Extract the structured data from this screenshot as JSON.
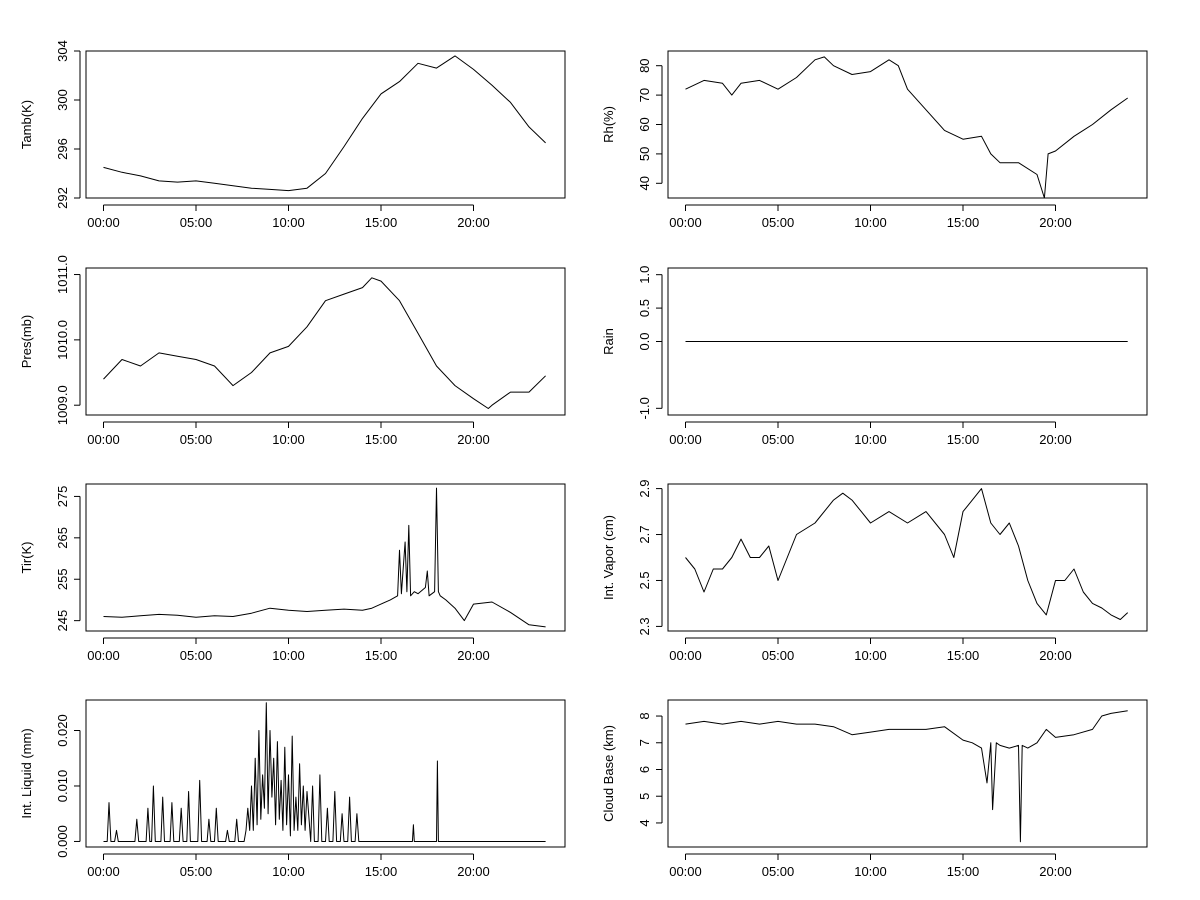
{
  "x_tick_labels": [
    "00:00",
    "05:00",
    "10:00",
    "15:00",
    "20:00"
  ],
  "chart_data": [
    {
      "type": "line",
      "ylabel": "Tamb(K)",
      "x_unit": "hours",
      "xlim": [
        0,
        24
      ],
      "ylim": [
        292,
        304
      ],
      "y_ticks": [
        292,
        296,
        300,
        304
      ],
      "y_tick_labels": [
        "292",
        "296",
        "300",
        "304"
      ],
      "series": [
        {
          "x": [
            0.0,
            1.0,
            2.0,
            3.0,
            4.0,
            5.0,
            6.0,
            7.0,
            8.0,
            9.0,
            10.0,
            11.0,
            12.0,
            13.0,
            14.0,
            15.0,
            16.0,
            17.0,
            18.0,
            19.0,
            20.0,
            21.0,
            22.0,
            23.0,
            23.9
          ],
          "y": [
            294.5,
            294.1,
            293.8,
            293.4,
            293.3,
            293.4,
            293.2,
            293.0,
            292.8,
            292.7,
            292.6,
            292.8,
            294.0,
            296.2,
            298.5,
            300.5,
            301.5,
            303.0,
            302.6,
            303.6,
            302.5,
            301.2,
            299.8,
            297.8,
            296.5
          ]
        }
      ]
    },
    {
      "type": "line",
      "ylabel": "Rh(%)",
      "x_unit": "hours",
      "xlim": [
        0,
        24
      ],
      "ylim": [
        35,
        85
      ],
      "y_ticks": [
        40,
        50,
        60,
        70,
        80
      ],
      "y_tick_labels": [
        "40",
        "50",
        "60",
        "70",
        "80"
      ],
      "series": [
        {
          "x": [
            0.0,
            1.0,
            2.0,
            2.5,
            3.0,
            4.0,
            5.0,
            6.0,
            7.0,
            7.5,
            8.0,
            9.0,
            10.0,
            11.0,
            11.5,
            12.0,
            13.0,
            14.0,
            15.0,
            16.0,
            16.5,
            17.0,
            18.0,
            19.0,
            19.4,
            19.6,
            20.0,
            21.0,
            22.0,
            23.0,
            23.9
          ],
          "y": [
            72,
            75,
            74,
            70,
            74,
            75,
            72,
            76,
            82,
            83,
            80,
            77,
            78,
            82,
            80,
            72,
            65,
            58,
            55,
            56,
            50,
            47,
            47,
            43,
            35,
            50,
            51,
            56,
            60,
            65,
            69
          ]
        }
      ]
    },
    {
      "type": "line",
      "ylabel": "Pres(mb)",
      "x_unit": "hours",
      "xlim": [
        0,
        24
      ],
      "ylim": [
        1008.85,
        1011.1
      ],
      "y_ticks": [
        1009.0,
        1010.0,
        1011.0
      ],
      "y_tick_labels": [
        "1009.0",
        "1010.0",
        "1011.0"
      ],
      "series": [
        {
          "x": [
            0.0,
            1.0,
            2.0,
            3.0,
            4.0,
            5.0,
            6.0,
            7.0,
            8.0,
            9.0,
            10.0,
            11.0,
            12.0,
            13.0,
            14.0,
            14.5,
            15.0,
            16.0,
            17.0,
            18.0,
            19.0,
            20.0,
            20.8,
            21.0,
            22.0,
            23.0,
            23.9
          ],
          "y": [
            1009.4,
            1009.7,
            1009.6,
            1009.8,
            1009.75,
            1009.7,
            1009.6,
            1009.3,
            1009.5,
            1009.8,
            1009.9,
            1010.2,
            1010.6,
            1010.7,
            1010.8,
            1010.95,
            1010.9,
            1010.6,
            1010.1,
            1009.6,
            1009.3,
            1009.1,
            1008.95,
            1009.0,
            1009.2,
            1009.2,
            1009.45
          ]
        }
      ]
    },
    {
      "type": "line",
      "ylabel": "Rain",
      "x_unit": "hours",
      "xlim": [
        0,
        24
      ],
      "ylim": [
        -1.1,
        1.1
      ],
      "y_ticks": [
        -1.0,
        0.0,
        0.5,
        1.0
      ],
      "y_tick_labels": [
        "-1.0",
        "0.0",
        "0.5",
        "1.0"
      ],
      "series": [
        {
          "x": [
            0.0,
            23.9
          ],
          "y": [
            0,
            0
          ]
        }
      ]
    },
    {
      "type": "line",
      "ylabel": "Tir(K)",
      "x_unit": "hours",
      "xlim": [
        0,
        24
      ],
      "ylim": [
        242.5,
        278
      ],
      "y_ticks": [
        245,
        255,
        265,
        275
      ],
      "y_tick_labels": [
        "245",
        "255",
        "265",
        "275"
      ],
      "series": [
        {
          "x": [
            0.0,
            1.0,
            2.0,
            3.0,
            4.0,
            5.0,
            6.0,
            7.0,
            8.0,
            9.0,
            10.0,
            11.0,
            12.0,
            13.0,
            14.0,
            14.5,
            15.0,
            15.5,
            15.9,
            16.0,
            16.1,
            16.3,
            16.4,
            16.5,
            16.6,
            16.8,
            17.0,
            17.4,
            17.5,
            17.6,
            17.9,
            18.0,
            18.1,
            18.2,
            18.5,
            19.0,
            19.5,
            20.0,
            21.0,
            22.0,
            23.0,
            23.9
          ],
          "y": [
            246,
            245.8,
            246.2,
            246.5,
            246.3,
            245.8,
            246.2,
            246.0,
            246.8,
            248.0,
            247.5,
            247.2,
            247.5,
            247.8,
            247.5,
            248.0,
            249.0,
            250.0,
            251.0,
            262.0,
            251.5,
            264.0,
            252.0,
            268.0,
            251.0,
            252.0,
            251.5,
            253.0,
            257.0,
            251.0,
            252.0,
            277.0,
            252.0,
            251.0,
            250.0,
            248.0,
            245.0,
            249.0,
            249.5,
            247.0,
            244.0,
            243.5
          ]
        }
      ]
    },
    {
      "type": "line",
      "ylabel": "Int. Vapor (cm)",
      "x_unit": "hours",
      "xlim": [
        0,
        24
      ],
      "ylim": [
        2.28,
        2.92
      ],
      "y_ticks": [
        2.3,
        2.5,
        2.7,
        2.9
      ],
      "y_tick_labels": [
        "2.3",
        "2.5",
        "2.7",
        "2.9"
      ],
      "series": [
        {
          "x": [
            0.0,
            0.5,
            1.0,
            1.5,
            2.0,
            2.5,
            3.0,
            3.5,
            4.0,
            4.5,
            5.0,
            6.0,
            7.0,
            8.0,
            8.5,
            9.0,
            9.5,
            10.0,
            11.0,
            12.0,
            13.0,
            14.0,
            14.5,
            15.0,
            15.5,
            16.0,
            16.5,
            17.0,
            17.5,
            18.0,
            18.5,
            19.0,
            19.5,
            20.0,
            20.5,
            21.0,
            21.5,
            22.0,
            22.5,
            23.0,
            23.5,
            23.9
          ],
          "y": [
            2.6,
            2.55,
            2.45,
            2.55,
            2.55,
            2.6,
            2.68,
            2.6,
            2.6,
            2.65,
            2.5,
            2.7,
            2.75,
            2.85,
            2.88,
            2.85,
            2.8,
            2.75,
            2.8,
            2.75,
            2.8,
            2.7,
            2.6,
            2.8,
            2.85,
            2.9,
            2.75,
            2.7,
            2.75,
            2.65,
            2.5,
            2.4,
            2.35,
            2.5,
            2.5,
            2.55,
            2.45,
            2.4,
            2.38,
            2.35,
            2.33,
            2.36
          ]
        }
      ]
    },
    {
      "type": "line",
      "ylabel": "Int. Liquid (mm)",
      "x_unit": "hours",
      "xlim": [
        0,
        24
      ],
      "ylim": [
        -0.001,
        0.0255
      ],
      "y_ticks": [
        0.0,
        0.01,
        0.02
      ],
      "y_tick_labels": [
        "0.000",
        "0.010",
        "0.020"
      ],
      "series": [
        {
          "x": [
            0.0,
            0.2,
            0.3,
            0.4,
            0.6,
            0.7,
            0.8,
            1.7,
            1.8,
            1.9,
            2.3,
            2.4,
            2.5,
            2.6,
            2.7,
            2.8,
            3.1,
            3.2,
            3.3,
            3.6,
            3.7,
            3.8,
            4.1,
            4.2,
            4.3,
            4.5,
            4.6,
            4.7,
            5.1,
            5.2,
            5.3,
            5.6,
            5.7,
            5.8,
            6.0,
            6.1,
            6.2,
            6.6,
            6.7,
            6.8,
            7.1,
            7.2,
            7.3,
            7.6,
            7.7,
            7.8,
            7.9,
            8.0,
            8.1,
            8.2,
            8.3,
            8.4,
            8.5,
            8.6,
            8.7,
            8.8,
            8.9,
            9.0,
            9.1,
            9.2,
            9.3,
            9.4,
            9.5,
            9.6,
            9.7,
            9.8,
            9.9,
            10.0,
            10.1,
            10.2,
            10.3,
            10.4,
            10.5,
            10.6,
            10.7,
            10.8,
            10.9,
            11.0,
            11.2,
            11.3,
            11.4,
            11.6,
            11.7,
            11.8,
            12.0,
            12.1,
            12.2,
            12.4,
            12.5,
            12.6,
            12.8,
            12.9,
            13.0,
            13.2,
            13.3,
            13.4,
            13.6,
            13.7,
            13.8,
            16.7,
            16.75,
            16.8,
            18.0,
            18.05,
            18.1,
            23.9
          ],
          "y": [
            0,
            0,
            0.007,
            0,
            0,
            0.002,
            0,
            0,
            0.004,
            0,
            0,
            0.006,
            0,
            0,
            0.01,
            0,
            0,
            0.008,
            0,
            0,
            0.007,
            0,
            0,
            0.006,
            0,
            0,
            0.009,
            0,
            0,
            0.011,
            0,
            0,
            0.004,
            0,
            0,
            0.006,
            0,
            0,
            0.002,
            0,
            0,
            0.004,
            0,
            0,
            0.002,
            0.006,
            0.002,
            0.01,
            0.002,
            0.015,
            0.003,
            0.02,
            0.004,
            0.012,
            0.006,
            0.025,
            0.005,
            0.02,
            0.008,
            0.015,
            0.003,
            0.018,
            0.004,
            0.011,
            0.002,
            0.017,
            0.003,
            0.012,
            0.001,
            0.019,
            0.002,
            0.008,
            0.002,
            0.014,
            0.003,
            0.01,
            0.002,
            0.009,
            0,
            0.01,
            0,
            0,
            0.012,
            0,
            0,
            0.006,
            0,
            0,
            0.009,
            0,
            0,
            0.005,
            0,
            0,
            0.008,
            0,
            0,
            0.005,
            0,
            0,
            0.003,
            0,
            0,
            0.0145,
            0,
            0
          ]
        }
      ]
    },
    {
      "type": "line",
      "ylabel": "Cloud Base (km)",
      "x_unit": "hours",
      "xlim": [
        0,
        24
      ],
      "ylim": [
        3.1,
        8.6
      ],
      "y_ticks": [
        4,
        5,
        6,
        7,
        8
      ],
      "y_tick_labels": [
        "4",
        "5",
        "6",
        "7",
        "8"
      ],
      "series": [
        {
          "x": [
            0.0,
            1.0,
            2.0,
            3.0,
            4.0,
            5.0,
            6.0,
            7.0,
            8.0,
            9.0,
            10.0,
            11.0,
            12.0,
            13.0,
            14.0,
            15.0,
            15.5,
            16.0,
            16.3,
            16.5,
            16.6,
            16.8,
            17.0,
            17.5,
            18.0,
            18.1,
            18.2,
            18.5,
            19.0,
            19.5,
            20.0,
            21.0,
            22.0,
            22.5,
            23.0,
            23.9
          ],
          "y": [
            7.7,
            7.8,
            7.7,
            7.8,
            7.7,
            7.8,
            7.7,
            7.7,
            7.6,
            7.3,
            7.4,
            7.5,
            7.5,
            7.5,
            7.6,
            7.1,
            7.0,
            6.8,
            5.5,
            7.0,
            4.5,
            7.0,
            6.9,
            6.8,
            6.9,
            3.3,
            6.9,
            6.8,
            7.0,
            7.5,
            7.2,
            7.3,
            7.5,
            8.0,
            8.1,
            8.2
          ]
        }
      ]
    }
  ]
}
